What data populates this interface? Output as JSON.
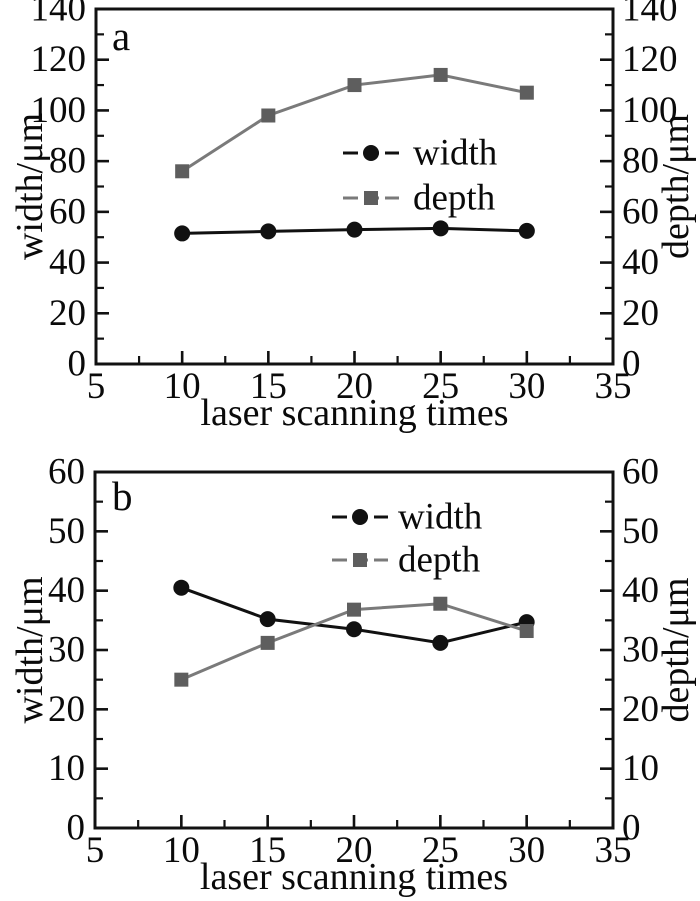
{
  "figure": {
    "background": "#ffffff",
    "text_color": "#0a0a0a",
    "axis_color": "#111111"
  },
  "chart_data": [
    {
      "id": "a",
      "type": "line",
      "panel_label": "a",
      "xlabel": "laser scanning times",
      "ylabel_left": "width/μm",
      "ylabel_right": "depth/μm",
      "xlim": [
        5,
        35
      ],
      "ylim": [
        0,
        140
      ],
      "x_ticks": [
        5,
        10,
        15,
        20,
        25,
        30,
        35
      ],
      "x_minor_ticks": [
        7.5,
        12.5,
        17.5,
        22.5,
        27.5,
        32.5
      ],
      "y_ticks": [
        0,
        20,
        40,
        60,
        80,
        100,
        120,
        140
      ],
      "y_minor_ticks": [
        10,
        30,
        50,
        70,
        90,
        110,
        130
      ],
      "grid": false,
      "legend_position": "center-right",
      "x": [
        10,
        15,
        20,
        25,
        30
      ],
      "series": [
        {
          "name": "width",
          "marker": "circle",
          "line_color": "#111111",
          "marker_color": "#111111",
          "values": [
            51.5,
            52.3,
            53.0,
            53.5,
            52.5
          ]
        },
        {
          "name": "depth",
          "marker": "square",
          "line_color": "#7a7a7a",
          "marker_color": "#5e5e5e",
          "values": [
            76,
            98,
            110,
            114,
            107
          ]
        }
      ],
      "legend": [
        {
          "label": "width"
        },
        {
          "label": "depth"
        }
      ]
    },
    {
      "id": "b",
      "type": "line",
      "panel_label": "b",
      "xlabel": "laser scanning times",
      "ylabel_left": "width/μm",
      "ylabel_right": "depth/μm",
      "xlim": [
        5,
        35
      ],
      "ylim": [
        0,
        60
      ],
      "x_ticks": [
        5,
        10,
        15,
        20,
        25,
        30,
        35
      ],
      "x_minor_ticks": [
        7.5,
        12.5,
        17.5,
        22.5,
        27.5,
        32.5
      ],
      "y_ticks": [
        0,
        10,
        20,
        30,
        40,
        50,
        60
      ],
      "y_minor_ticks": [
        5,
        15,
        25,
        35,
        45,
        55
      ],
      "grid": false,
      "legend_position": "top-center",
      "x": [
        10,
        15,
        20,
        25,
        30
      ],
      "series": [
        {
          "name": "width",
          "marker": "circle",
          "line_color": "#111111",
          "marker_color": "#111111",
          "values": [
            40.5,
            35.2,
            33.5,
            31.2,
            34.7
          ]
        },
        {
          "name": "depth",
          "marker": "square",
          "line_color": "#7a7a7a",
          "marker_color": "#5e5e5e",
          "values": [
            25.0,
            31.2,
            36.8,
            37.8,
            33.2
          ]
        }
      ],
      "legend": [
        {
          "label": "width"
        },
        {
          "label": "depth"
        }
      ]
    }
  ]
}
